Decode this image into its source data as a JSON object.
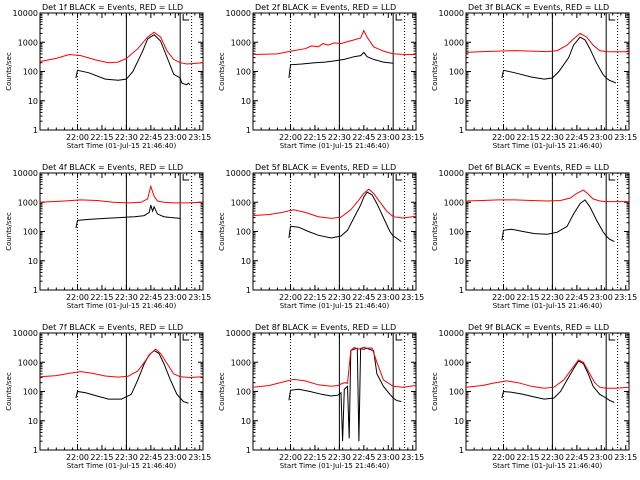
{
  "figure": {
    "x_tick_labels": [
      "22:00",
      "22:15",
      "22:30",
      "22:45",
      "23:00",
      "23:15"
    ],
    "y_tick_labels": [
      "1",
      "10",
      "100",
      "1000",
      "10000"
    ],
    "xlabel": "Start Time (01-Jul-15 21:46:40)",
    "ylabel": "Counts/sec",
    "colors": {
      "events": "#000000",
      "lld": "#ff0000",
      "background": "#ffffff"
    }
  },
  "chart_data": [
    {
      "type": "line",
      "title": "Det 1f BLACK = Events, RED = LLD",
      "xlim_minutes": [
        -10,
        90
      ],
      "ylim": [
        1,
        10000
      ],
      "yscale": "log",
      "vlines_dotted_minutes": [
        13,
        83
      ],
      "vlines_solid_minutes": [
        43,
        76
      ],
      "series": [
        {
          "name": "Events",
          "x": [
            12,
            13,
            20,
            30,
            38,
            43,
            47,
            53,
            56,
            60,
            64,
            68,
            72,
            76,
            77,
            80,
            81,
            82
          ],
          "y": [
            60,
            110,
            90,
            55,
            50,
            55,
            100,
            500,
            1300,
            1800,
            1100,
            300,
            80,
            60,
            40,
            35,
            40,
            35
          ]
        },
        {
          "name": "LLD",
          "x": [
            -10,
            0,
            8,
            15,
            24,
            32,
            38,
            43,
            50,
            56,
            60,
            64,
            68,
            72,
            76,
            80,
            90
          ],
          "y": [
            220,
            280,
            380,
            350,
            250,
            200,
            210,
            280,
            600,
            1500,
            2200,
            1500,
            500,
            260,
            200,
            180,
            200
          ]
        }
      ]
    },
    {
      "type": "line",
      "title": "Det 2f BLACK = Events, RED = LLD",
      "xlim_minutes": [
        -10,
        90
      ],
      "ylim": [
        1,
        10000
      ],
      "yscale": "log",
      "vlines_dotted_minutes": [
        13,
        83
      ],
      "vlines_solid_minutes": [
        43,
        76
      ],
      "series": [
        {
          "name": "Events",
          "x": [
            12,
            13,
            20,
            28,
            34,
            40,
            46,
            52,
            56,
            58,
            60,
            64,
            70,
            76
          ],
          "y": [
            60,
            170,
            180,
            200,
            210,
            230,
            260,
            320,
            350,
            450,
            320,
            260,
            210,
            190
          ]
        },
        {
          "name": "LLD",
          "x": [
            -10,
            5,
            15,
            22,
            26,
            30,
            33,
            36,
            40,
            44,
            48,
            52,
            56,
            58,
            60,
            64,
            70,
            76,
            84,
            90
          ],
          "y": [
            380,
            400,
            520,
            600,
            750,
            700,
            900,
            800,
            950,
            900,
            1050,
            1200,
            1400,
            2500,
            1500,
            700,
            500,
            400,
            380,
            380
          ]
        }
      ]
    },
    {
      "type": "line",
      "title": "Det 3f BLACK = Events, RED = LLD",
      "xlim_minutes": [
        -10,
        90
      ],
      "ylim": [
        1,
        10000
      ],
      "yscale": "log",
      "vlines_dotted_minutes": [
        13,
        83
      ],
      "vlines_solid_minutes": [
        43,
        76
      ],
      "series": [
        {
          "name": "Events",
          "x": [
            12,
            13,
            20,
            30,
            38,
            43,
            47,
            53,
            56,
            60,
            63,
            66,
            70,
            74,
            76,
            78,
            80,
            82
          ],
          "y": [
            60,
            110,
            90,
            65,
            55,
            60,
            100,
            300,
            800,
            1500,
            1200,
            600,
            200,
            80,
            60,
            50,
            45,
            40
          ]
        },
        {
          "name": "LLD",
          "x": [
            -10,
            0,
            10,
            20,
            30,
            40,
            46,
            52,
            56,
            60,
            64,
            68,
            72,
            76,
            80,
            90
          ],
          "y": [
            450,
            480,
            500,
            520,
            500,
            480,
            520,
            800,
            1300,
            2000,
            1500,
            800,
            520,
            480,
            470,
            470
          ]
        }
      ]
    },
    {
      "type": "line",
      "title": "Det 4f BLACK = Events, RED = LLD",
      "xlim_minutes": [
        -10,
        90
      ],
      "ylim": [
        1,
        10000
      ],
      "yscale": "log",
      "vlines_dotted_minutes": [
        13,
        83
      ],
      "vlines_solid_minutes": [
        43,
        76
      ],
      "series": [
        {
          "name": "Events",
          "x": [
            12,
            13,
            20,
            30,
            40,
            48,
            54,
            57,
            58,
            59,
            60,
            62,
            66,
            70,
            76
          ],
          "y": [
            130,
            240,
            260,
            280,
            300,
            320,
            350,
            450,
            800,
            500,
            700,
            400,
            320,
            300,
            280
          ]
        },
        {
          "name": "LLD",
          "x": [
            -10,
            5,
            15,
            25,
            35,
            45,
            52,
            56,
            58,
            60,
            62,
            66,
            72,
            80,
            90
          ],
          "y": [
            1000,
            1100,
            1200,
            1150,
            1000,
            950,
            1000,
            1300,
            3500,
            1600,
            1100,
            1000,
            950,
            950,
            1000
          ]
        }
      ]
    },
    {
      "type": "line",
      "title": "Det 5f BLACK = Events, RED = LLD",
      "xlim_minutes": [
        -10,
        90
      ],
      "ylim": [
        1,
        10000
      ],
      "yscale": "log",
      "vlines_dotted_minutes": [
        13,
        83
      ],
      "vlines_solid_minutes": [
        43,
        76
      ],
      "series": [
        {
          "name": "Events",
          "x": [
            12,
            13,
            18,
            24,
            30,
            38,
            44,
            48,
            52,
            56,
            58,
            60,
            63,
            66,
            70,
            74,
            76,
            78,
            81
          ],
          "y": [
            60,
            150,
            140,
            100,
            75,
            60,
            70,
            110,
            300,
            800,
            1500,
            2200,
            1800,
            900,
            300,
            100,
            70,
            60,
            45
          ]
        },
        {
          "name": "LLD",
          "x": [
            -10,
            0,
            8,
            15,
            22,
            30,
            38,
            44,
            50,
            55,
            58,
            61,
            64,
            68,
            72,
            76,
            82,
            90
          ],
          "y": [
            350,
            380,
            450,
            550,
            450,
            320,
            280,
            310,
            550,
            1200,
            2000,
            2800,
            2000,
            1000,
            500,
            320,
            290,
            330
          ]
        }
      ]
    },
    {
      "type": "line",
      "title": "Det 6f BLACK = Events, RED = LLD",
      "xlim_minutes": [
        -10,
        90
      ],
      "ylim": [
        1,
        10000
      ],
      "yscale": "log",
      "vlines_dotted_minutes": [
        13,
        83
      ],
      "vlines_solid_minutes": [
        43,
        76
      ],
      "series": [
        {
          "name": "Events",
          "x": [
            12,
            13,
            18,
            25,
            32,
            40,
            46,
            52,
            56,
            60,
            63,
            66,
            70,
            74,
            76,
            78,
            81
          ],
          "y": [
            50,
            110,
            120,
            100,
            85,
            80,
            95,
            150,
            400,
            900,
            1200,
            700,
            250,
            100,
            70,
            55,
            45
          ]
        },
        {
          "name": "LLD",
          "x": [
            -10,
            0,
            10,
            20,
            30,
            40,
            48,
            54,
            58,
            62,
            65,
            68,
            72,
            76,
            82,
            90
          ],
          "y": [
            1100,
            1150,
            1200,
            1200,
            1150,
            1100,
            1150,
            1400,
            2000,
            2600,
            1900,
            1300,
            1100,
            1050,
            1050,
            1050
          ]
        }
      ]
    },
    {
      "type": "line",
      "title": "Det 7f BLACK = Events, RED = LLD",
      "xlim_minutes": [
        -10,
        90
      ],
      "ylim": [
        1,
        10000
      ],
      "yscale": "log",
      "vlines_dotted_minutes": [
        13,
        83
      ],
      "vlines_solid_minutes": [
        43,
        76
      ],
      "series": [
        {
          "name": "Events",
          "x": [
            12,
            13,
            18,
            25,
            32,
            40,
            46,
            50,
            54,
            57,
            60,
            63,
            66,
            70,
            74,
            76,
            78,
            81
          ],
          "y": [
            60,
            100,
            90,
            70,
            55,
            55,
            80,
            250,
            900,
            1800,
            2500,
            2000,
            900,
            250,
            80,
            60,
            45,
            40
          ]
        },
        {
          "name": "LLD",
          "x": [
            -10,
            0,
            8,
            15,
            22,
            30,
            38,
            44,
            50,
            54,
            58,
            61,
            64,
            68,
            72,
            76,
            82,
            90
          ],
          "y": [
            320,
            350,
            420,
            480,
            420,
            340,
            310,
            330,
            500,
            1000,
            2000,
            2800,
            2000,
            900,
            400,
            320,
            300,
            320
          ]
        }
      ]
    },
    {
      "type": "line",
      "title": "Det 8f BLACK = Events, RED = LLD",
      "xlim_minutes": [
        -10,
        90
      ],
      "ylim": [
        1,
        10000
      ],
      "yscale": "log",
      "vlines_dotted_minutes": [
        13,
        83
      ],
      "vlines_solid_minutes": [
        43,
        76
      ],
      "series": [
        {
          "name": "Events",
          "x": [
            12,
            13,
            18,
            25,
            32,
            38,
            42,
            44,
            45,
            46,
            48,
            49,
            50,
            52,
            54,
            55,
            56,
            58,
            60,
            62,
            64,
            66,
            70,
            74,
            76,
            78,
            81
          ],
          "y": [
            50,
            110,
            120,
            100,
            80,
            70,
            75,
            90,
            2,
            120,
            150,
            2.5,
            2500,
            2800,
            3000,
            2,
            2900,
            2800,
            3000,
            2700,
            2500,
            400,
            150,
            80,
            60,
            50,
            45
          ]
        },
        {
          "name": "LLD",
          "x": [
            -10,
            0,
            8,
            15,
            22,
            30,
            38,
            42,
            44,
            46,
            48,
            50,
            52,
            55,
            58,
            60,
            63,
            66,
            70,
            76,
            82,
            90
          ],
          "y": [
            140,
            160,
            210,
            260,
            230,
            170,
            150,
            160,
            180,
            200,
            190,
            2500,
            3200,
            2800,
            3300,
            3000,
            3100,
            1000,
            250,
            150,
            140,
            160
          ]
        }
      ]
    },
    {
      "type": "line",
      "title": "Det 9f BLACK = Events, RED = LLD",
      "xlim_minutes": [
        -10,
        90
      ],
      "ylim": [
        1,
        10000
      ],
      "yscale": "log",
      "vlines_dotted_minutes": [
        13,
        83
      ],
      "vlines_solid_minutes": [
        43,
        76
      ],
      "series": [
        {
          "name": "Events",
          "x": [
            12,
            13,
            18,
            25,
            32,
            38,
            44,
            48,
            52,
            56,
            59,
            62,
            65,
            68,
            72,
            76,
            78,
            81
          ],
          "y": [
            60,
            100,
            95,
            80,
            65,
            55,
            60,
            100,
            250,
            600,
            1100,
            900,
            400,
            150,
            80,
            60,
            50,
            42
          ]
        },
        {
          "name": "LLD",
          "x": [
            -10,
            0,
            8,
            15,
            22,
            30,
            38,
            44,
            50,
            55,
            59,
            62,
            65,
            69,
            72,
            76,
            82,
            90
          ],
          "y": [
            140,
            160,
            200,
            230,
            200,
            150,
            130,
            140,
            250,
            600,
            1200,
            1000,
            500,
            200,
            140,
            130,
            130,
            140
          ]
        }
      ]
    }
  ]
}
